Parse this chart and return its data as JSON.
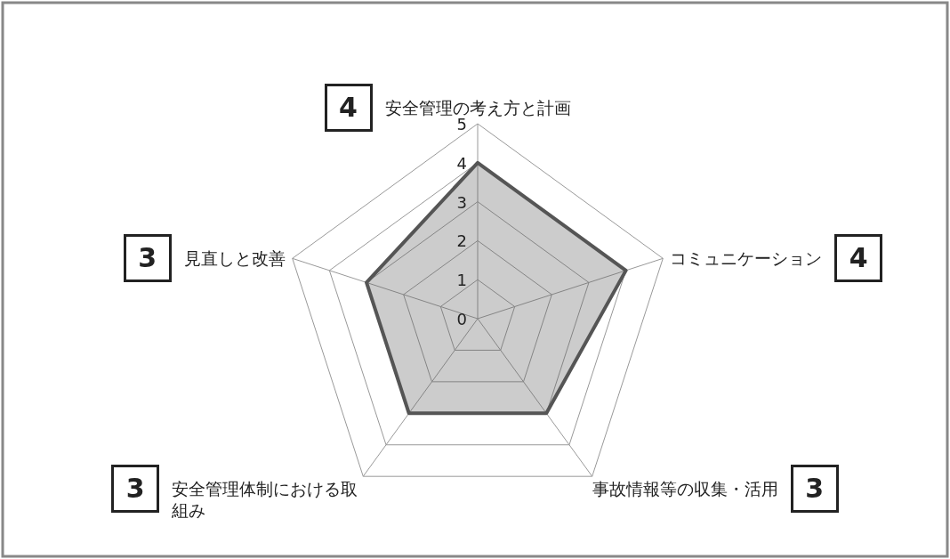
{
  "chart_data": {
    "type": "radar",
    "categories": [
      "安全管理の考え方と計画",
      "コミュニケーション",
      "事故情報等の収集・活用",
      "安全管理体制における取組み",
      "見直しと改善"
    ],
    "series": [
      {
        "color": "#555555",
        "values": [
          4,
          4,
          3,
          3,
          3
        ]
      }
    ],
    "ylim": [
      0,
      5
    ],
    "yticks": [
      0,
      1,
      2,
      3,
      4,
      5
    ],
    "grid": true,
    "annotations": [
      "4",
      "4",
      "3",
      "3",
      "3"
    ]
  }
}
